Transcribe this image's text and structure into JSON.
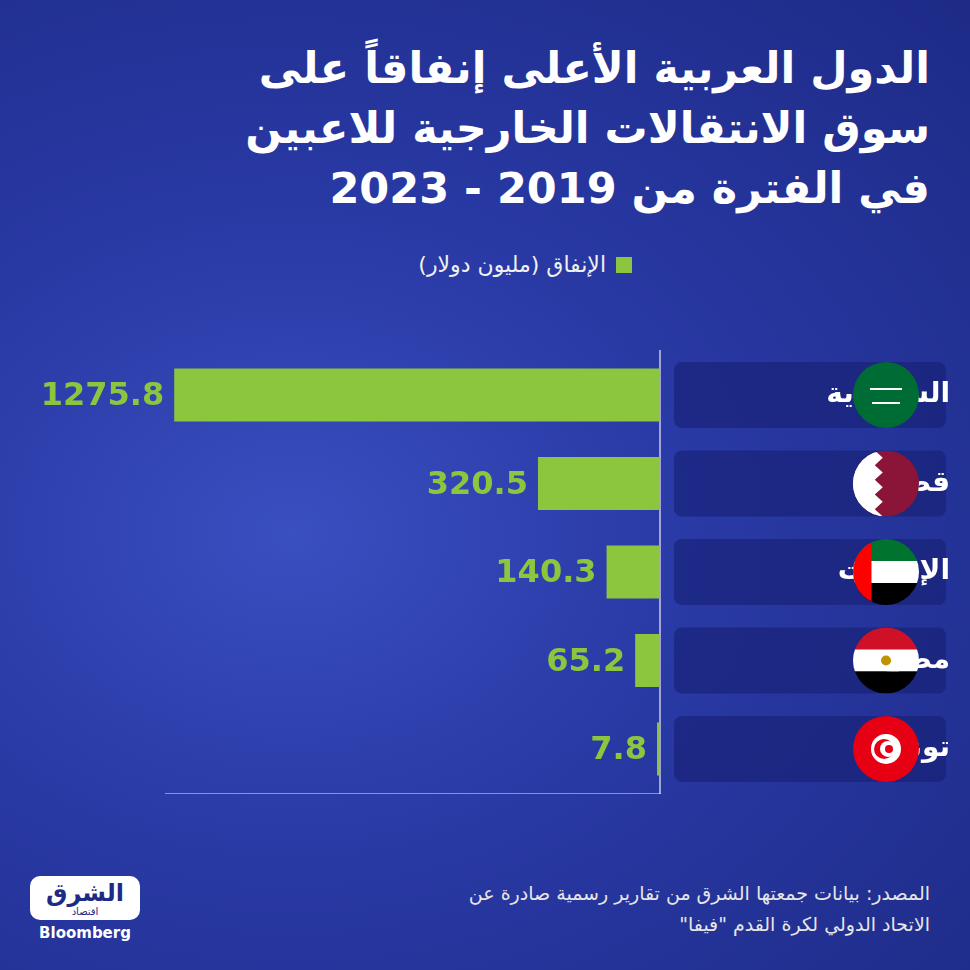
{
  "chart_data": {
    "type": "bar",
    "orientation": "horizontal",
    "title": [
      "الدول العربية الأعلى إنفاقاً على",
      "سوق الانتقالات الخارجية للاعبين",
      "في الفترة من 2019 - 2023"
    ],
    "categories": [
      "السعودية",
      "قطر",
      "الإمارات",
      "مصر",
      "تونس"
    ],
    "series": [
      {
        "name": "الإنفاق (مليون دولار)",
        "color": "#8cc63f",
        "values": [
          1275.8,
          320.5,
          140.3,
          65.2,
          7.8
        ]
      }
    ],
    "xlim": [
      0,
      1300
    ],
    "xticks": [],
    "grid": false,
    "legend": "top",
    "data_labels": true,
    "tick_labels": "y",
    "source": [
      "المصدر: بيانات جمعتها الشرق من تقارير رسمية صادرة عن",
      "الاتحاد الدولي لكرة القدم \"فيفا\""
    ],
    "logo": [
      "الشرق",
      "اقتصاد",
      "Bloomberg"
    ]
  }
}
